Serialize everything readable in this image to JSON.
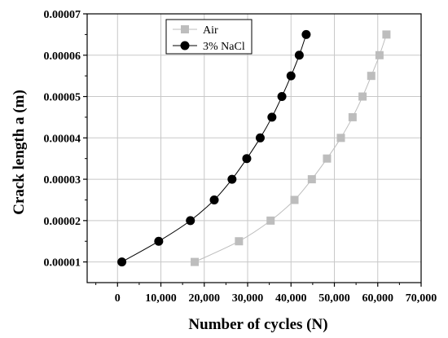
{
  "chart_data": {
    "type": "scatter",
    "xlabel": "Number of cycles (N)",
    "ylabel": "Crack length a (m)",
    "xlim": [
      -7000,
      70000
    ],
    "ylim": [
      5e-06,
      7e-05
    ],
    "xticks": [
      0,
      10000,
      20000,
      30000,
      40000,
      50000,
      60000,
      70000
    ],
    "xtick_labels": [
      "0",
      "10,000",
      "20,000",
      "30,000",
      "40,000",
      "50,000",
      "60,000",
      "70,000"
    ],
    "yticks": [
      1e-05,
      2e-05,
      3e-05,
      4e-05,
      5e-05,
      6e-05,
      7e-05
    ],
    "ytick_labels": [
      "0.00001",
      "0.00002",
      "0.00003",
      "0.00004",
      "0.00005",
      "0.00006",
      "0.00007"
    ],
    "grid": true,
    "legend": "top-left",
    "series": [
      {
        "name": "Air",
        "marker": "square",
        "color": "#bdbdbd",
        "x": [
          17800,
          28000,
          35300,
          40800,
          44800,
          48300,
          51500,
          54200,
          56500,
          58500,
          60400,
          62000
        ],
        "y": [
          1e-05,
          1.5e-05,
          2e-05,
          2.5e-05,
          3e-05,
          3.5e-05,
          4e-05,
          4.5e-05,
          5e-05,
          5.5e-05,
          6e-05,
          6.5e-05
        ]
      },
      {
        "name": "3% NaCl",
        "marker": "circle",
        "color": "#000000",
        "x": [
          1000,
          9500,
          16800,
          22300,
          26400,
          29800,
          32900,
          35600,
          37900,
          40000,
          41900,
          43500
        ],
        "y": [
          1e-05,
          1.5e-05,
          2e-05,
          2.5e-05,
          3e-05,
          3.5e-05,
          4e-05,
          4.5e-05,
          5e-05,
          5.5e-05,
          6e-05,
          6.5e-05
        ]
      }
    ]
  }
}
